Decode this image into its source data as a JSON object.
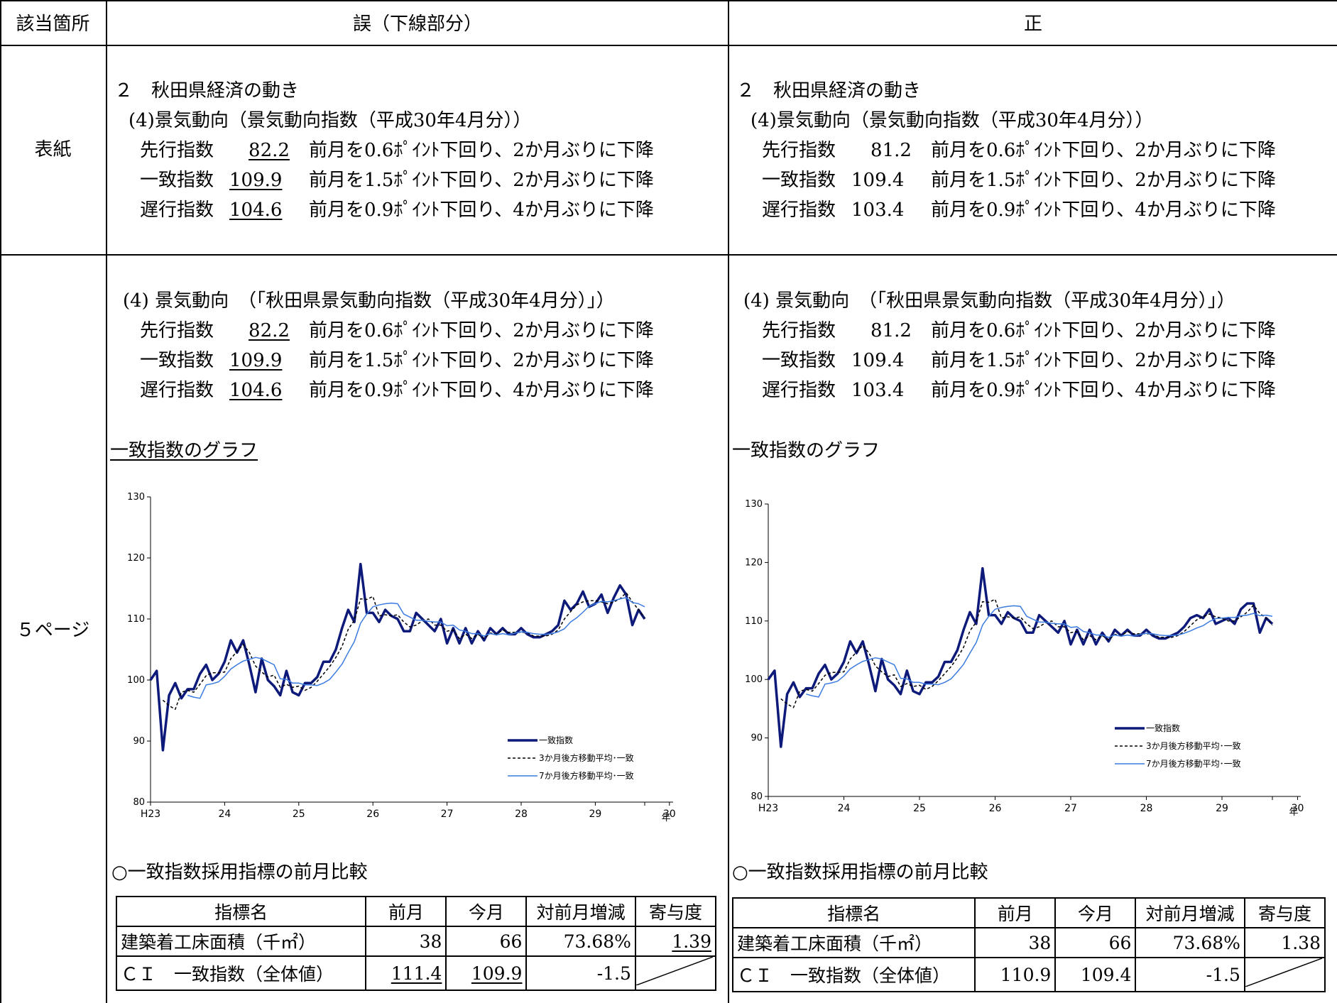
{
  "header": {
    "location": "該当箇所",
    "wrong": "誤（下線部分）",
    "correct": "正"
  },
  "rows": [
    {
      "label": "表紙"
    },
    {
      "label": "５ページ"
    }
  ],
  "cover": {
    "wrong": {
      "line1": "２　秋田県経済の動き",
      "line2": "(4)景気動向（景気動向指数（平成30年4月分））",
      "items": [
        {
          "name": "先行指数",
          "value": "82.2",
          "desc": "前月を0.6ﾎﾟｲﾝﾄ下回り、2か月ぶりに下降"
        },
        {
          "name": "一致指数",
          "value": "109.9",
          "desc": "前月を1.5ﾎﾟｲﾝﾄ下回り、2か月ぶりに下降"
        },
        {
          "name": "遅行指数",
          "value": "104.6",
          "desc": "前月を0.9ﾎﾟｲﾝﾄ下回り、4か月ぶりに下降"
        }
      ]
    },
    "correct": {
      "line1": "２　秋田県経済の動き",
      "line2": "(4)景気動向（景気動向指数（平成30年4月分））",
      "items": [
        {
          "name": "先行指数",
          "value": "81.2",
          "desc": "前月を0.6ﾎﾟｲﾝﾄ下回り、2か月ぶりに下降"
        },
        {
          "name": "一致指数",
          "value": "109.4",
          "desc": "前月を1.5ﾎﾟｲﾝﾄ下回り、2か月ぶりに下降"
        },
        {
          "name": "遅行指数",
          "value": "103.4",
          "desc": "前月を0.9ﾎﾟｲﾝﾄ下回り、4か月ぶりに下降"
        }
      ]
    }
  },
  "page5": {
    "wrong": {
      "heading": "(4) 景気動向　（「秋田県景気動向指数（平成30年4月分）」）",
      "items": [
        {
          "name": "先行指数",
          "value": "82.2",
          "desc": "前月を0.6ﾎﾟｲﾝﾄ下回り、2か月ぶりに下降"
        },
        {
          "name": "一致指数",
          "value": "109.9",
          "desc": "前月を1.5ﾎﾟｲﾝﾄ下回り、2か月ぶりに下降"
        },
        {
          "name": "遅行指数",
          "value": "104.6",
          "desc": "前月を0.9ﾎﾟｲﾝﾄ下回り、4か月ぶりに下降"
        }
      ],
      "graph_title": "一致指数のグラフ",
      "table_title": "○一致指数採用指標の前月比較",
      "table": {
        "headers": [
          "指標名",
          "前月",
          "今月",
          "対前月増減",
          "寄与度"
        ],
        "rows": [
          [
            "建築着工床面積（千㎡）",
            "38",
            "66",
            "73.68%",
            "1.39"
          ],
          [
            "ＣＩ　一致指数（全体値）",
            "111.4",
            "109.9",
            "-1.5",
            ""
          ]
        ]
      }
    },
    "correct": {
      "heading": "(4) 景気動向　（「秋田県景気動向指数（平成30年4月分）」）",
      "items": [
        {
          "name": "先行指数",
          "value": "81.2",
          "desc": "前月を0.6ﾎﾟｲﾝﾄ下回り、2か月ぶりに下降"
        },
        {
          "name": "一致指数",
          "value": "109.4",
          "desc": "前月を1.5ﾎﾟｲﾝﾄ下回り、2か月ぶりに下降"
        },
        {
          "name": "遅行指数",
          "value": "103.4",
          "desc": "前月を0.9ﾎﾟｲﾝﾄ下回り、4か月ぶりに下降"
        }
      ],
      "graph_title": "一致指数のグラフ",
      "table_title": "○一致指数採用指標の前月比較",
      "table": {
        "headers": [
          "指標名",
          "前月",
          "今月",
          "対前月増減",
          "寄与度"
        ],
        "rows": [
          [
            "建築着工床面積（千㎡）",
            "38",
            "66",
            "73.68%",
            "1.38"
          ],
          [
            "ＣＩ　一致指数（全体値）",
            "110.9",
            "109.4",
            "-1.5",
            ""
          ]
        ]
      }
    }
  },
  "chart_data": [
    {
      "type": "line",
      "xlabel": "年",
      "x_ticks": [
        "H23",
        "24",
        "25",
        "26",
        "27",
        "28",
        "29",
        "30"
      ],
      "ylim": [
        80,
        130
      ],
      "y_ticks": [
        80,
        90,
        100,
        110,
        120,
        130
      ],
      "legend": "bottom-right",
      "series": [
        {
          "name": "一致指数",
          "color": "#0d1a7a",
          "values": [
            100,
            101.5,
            88.5,
            97.5,
            99.5,
            97,
            98.5,
            98.5,
            101,
            102.5,
            100,
            101,
            103,
            106.5,
            104.5,
            106.5,
            102.5,
            98,
            103.5,
            100,
            99,
            97.5,
            101.5,
            98,
            97.5,
            99.5,
            99.5,
            100.5,
            103,
            103,
            105,
            108.5,
            111.5,
            109.5,
            119,
            111,
            111,
            109.5,
            111.5,
            110.5,
            110,
            108,
            108,
            111,
            110,
            109,
            108,
            110,
            106,
            108.5,
            106,
            108.5,
            106,
            108,
            106.5,
            108.5,
            107.5,
            108.5,
            107.5,
            107.5,
            108.5,
            107.5,
            107,
            107,
            107.5,
            108,
            109,
            113,
            111.5,
            112.5,
            114.5,
            112,
            112.5,
            114,
            111,
            113.5,
            115.5,
            114,
            109,
            111.5,
            110
          ]
        },
        {
          "name": "3か月後方移動平均･一致",
          "color": "#000000",
          "values": [
            null,
            null,
            96.7,
            95.8,
            95.2,
            98,
            98.3,
            98,
            99.3,
            100.7,
            101.2,
            101.2,
            101.3,
            103.5,
            104.7,
            105.8,
            104.5,
            102.3,
            101.3,
            100.5,
            100.8,
            98.8,
            99.3,
            98.8,
            99,
            98.3,
            98.8,
            99.8,
            101,
            102.2,
            103.7,
            105.5,
            108.3,
            109.8,
            113.3,
            113.2,
            113.7,
            110.5,
            110.7,
            110.5,
            110.7,
            109.5,
            108.7,
            109,
            109.7,
            110,
            109,
            109,
            108,
            108.2,
            106.8,
            107.5,
            106.8,
            107.5,
            106.8,
            107.7,
            107.5,
            108.2,
            107.8,
            107.8,
            107.8,
            107.8,
            107.2,
            107.2,
            107.2,
            107.5,
            108.2,
            110,
            111.2,
            112.3,
            112.8,
            113,
            113,
            112.8,
            112.5,
            112.8,
            113.3,
            114.3,
            112.8,
            111.5,
            110.2
          ]
        },
        {
          "name": "7か月後方移動平均･一致",
          "color": "#3b7be0",
          "values": [
            null,
            null,
            null,
            null,
            null,
            null,
            97.5,
            97.2,
            97,
            99.2,
            99.4,
            99.7,
            100.6,
            101.8,
            102.5,
            103.1,
            103.4,
            103.7,
            103.5,
            103,
            102.5,
            100.2,
            100.1,
            99.5,
            99.5,
            99.2,
            99.2,
            99.1,
            99.5,
            100.1,
            101.3,
            102.6,
            104.5,
            106.3,
            109.3,
            110.8,
            112,
            112.3,
            112.5,
            112.6,
            112.5,
            110.8,
            110.3,
            109.8,
            109.8,
            109.6,
            109.5,
            109.5,
            108.9,
            109,
            108.2,
            108,
            107.6,
            107.6,
            107.2,
            107.6,
            107.4,
            107.6,
            107.4,
            107.7,
            107.9,
            107.8,
            107.6,
            107.5,
            107.5,
            107.6,
            107.9,
            108.4,
            109.5,
            110.2,
            111.1,
            112.1,
            112.5,
            112.9,
            112.8,
            113,
            113.3,
            113.5,
            112.7,
            112.5,
            112
          ]
        }
      ]
    },
    {
      "type": "line",
      "xlabel": "年",
      "x_ticks": [
        "H23",
        "24",
        "25",
        "26",
        "27",
        "28",
        "29",
        "30"
      ],
      "ylim": [
        80,
        130
      ],
      "y_ticks": [
        80,
        90,
        100,
        110,
        120,
        130
      ],
      "legend": "bottom-right",
      "series": [
        {
          "name": "一致指数",
          "color": "#0d1a7a",
          "values": [
            100,
            101.5,
            88.5,
            97.5,
            99.5,
            97,
            98.5,
            98.5,
            101,
            102.5,
            100,
            101,
            103,
            106.5,
            104.5,
            106.5,
            102.5,
            98,
            103.5,
            100,
            99,
            97.5,
            101.5,
            98,
            97.5,
            99.5,
            99.5,
            100.5,
            103,
            103,
            105,
            108.5,
            111.5,
            109.5,
            119,
            111,
            111,
            109.5,
            111.5,
            110.5,
            110,
            108,
            108,
            111,
            110,
            109,
            108,
            110,
            106,
            108.5,
            106,
            108.5,
            106,
            108,
            106.5,
            108.5,
            107.5,
            108.5,
            107.5,
            107.5,
            108.5,
            107.5,
            107,
            107,
            107.5,
            108,
            109,
            110.5,
            111,
            110.5,
            112,
            109.5,
            110,
            110.5,
            109.5,
            112,
            113,
            113,
            108,
            110.5,
            109.5
          ]
        },
        {
          "name": "3か月後方移動平均･一致",
          "color": "#000000",
          "values": [
            null,
            null,
            96.7,
            95.8,
            95.2,
            98,
            98.3,
            98,
            99.3,
            100.7,
            101.2,
            101.2,
            101.3,
            103.5,
            104.7,
            105.8,
            104.5,
            102.3,
            101.3,
            100.5,
            100.8,
            98.8,
            99.3,
            98.8,
            99,
            98.3,
            98.8,
            99.8,
            101,
            102.2,
            103.7,
            105.5,
            108.3,
            109.8,
            113.3,
            113.2,
            113.7,
            110.5,
            110.7,
            110.5,
            110.7,
            109.5,
            108.7,
            109,
            109.7,
            110,
            109,
            109,
            108,
            108.2,
            106.8,
            107.5,
            106.8,
            107.5,
            106.8,
            107.7,
            107.5,
            108.2,
            107.8,
            107.8,
            107.8,
            107.8,
            107.2,
            107.2,
            107.2,
            107.5,
            108.2,
            109.2,
            110.2,
            110.7,
            111.2,
            110.7,
            110.5,
            110,
            110,
            110.7,
            111.5,
            112.7,
            111.3,
            110.5,
            109.3
          ]
        },
        {
          "name": "7か月後方移動平均･一致",
          "color": "#3b7be0",
          "values": [
            null,
            null,
            null,
            null,
            null,
            null,
            97.5,
            97.2,
            97,
            99.2,
            99.4,
            99.7,
            100.6,
            101.8,
            102.5,
            103.1,
            103.4,
            103.7,
            103.5,
            103,
            102.5,
            100.2,
            100.1,
            99.5,
            99.5,
            99.2,
            99.2,
            99.1,
            99.5,
            100.1,
            101.3,
            102.6,
            104.5,
            106.3,
            109.3,
            110.8,
            112,
            112.3,
            112.5,
            112.6,
            112.5,
            110.8,
            110.3,
            109.8,
            109.8,
            109.6,
            109.5,
            109.5,
            108.9,
            109,
            108.2,
            108,
            107.6,
            107.6,
            107.2,
            107.6,
            107.4,
            107.6,
            107.4,
            107.7,
            107.9,
            107.8,
            107.6,
            107.5,
            107.5,
            107.6,
            107.9,
            108.3,
            108.8,
            109.2,
            109.9,
            110.4,
            110.5,
            110.6,
            110.6,
            110.9,
            111,
            111.3,
            110.9,
            111,
            110.8
          ]
        }
      ]
    }
  ]
}
